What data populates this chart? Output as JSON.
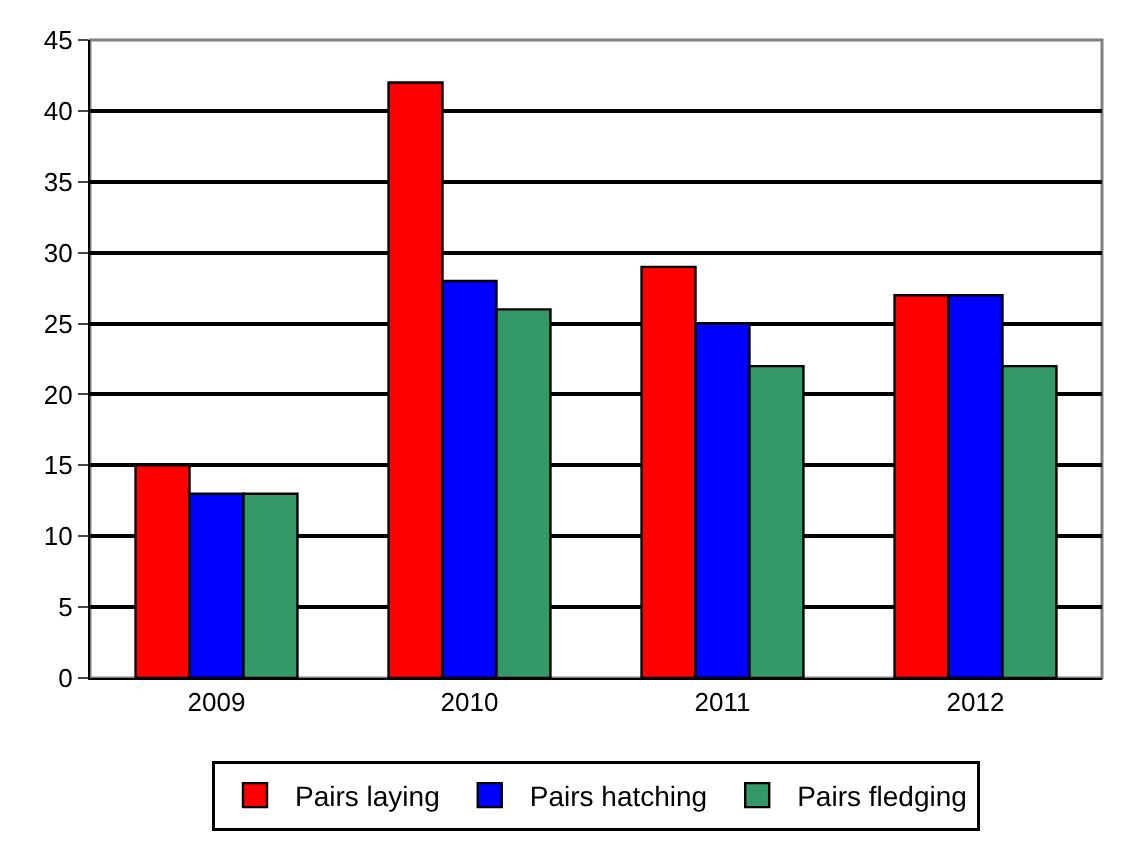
{
  "chart_data": {
    "type": "bar",
    "categories": [
      "2009",
      "2010",
      "2011",
      "2012"
    ],
    "series": [
      {
        "name": "Pairs laying",
        "color": "#ff0000",
        "values": [
          15,
          42,
          29,
          27
        ]
      },
      {
        "name": "Pairs hatching",
        "color": "#0000ff",
        "values": [
          13,
          28,
          25,
          27
        ]
      },
      {
        "name": "Pairs fledging",
        "color": "#339966",
        "values": [
          13,
          26,
          22,
          22
        ]
      }
    ],
    "ylim": [
      0,
      45
    ],
    "yticks": [
      0,
      5,
      10,
      15,
      20,
      25,
      30,
      35,
      40,
      45
    ],
    "grid": "y",
    "legend": "bottom"
  }
}
